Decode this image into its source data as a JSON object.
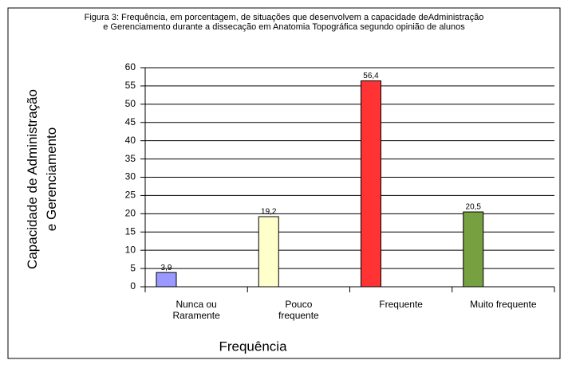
{
  "chart_data": {
    "type": "bar",
    "title": "Figura 3: Frequência, em porcentagem,  de situações que desenvolvem a capacidade deAdministração\ne Gerenciamento durante a dissecação em Anatomia Topográfica segundo opinião de alunos",
    "x_label": "Frequência",
    "y_label": "Capacidade de Administração\ne Gerenciamento",
    "categories": [
      "Nunca ou\nRaramente",
      "Pouco\nfrequente",
      "Frequente",
      "Muito frequente"
    ],
    "values": [
      3.9,
      19.2,
      56.4,
      20.5
    ],
    "value_labels": [
      "3,9",
      "19,2",
      "56,4",
      "20,5"
    ],
    "colors": [
      "#9999ff",
      "#ffffcc",
      "#ff3333",
      "#77a040"
    ],
    "ylim": [
      0,
      60
    ],
    "yticks": [
      0,
      5,
      10,
      15,
      20,
      25,
      30,
      35,
      40,
      45,
      50,
      55,
      60
    ],
    "grid": true
  }
}
